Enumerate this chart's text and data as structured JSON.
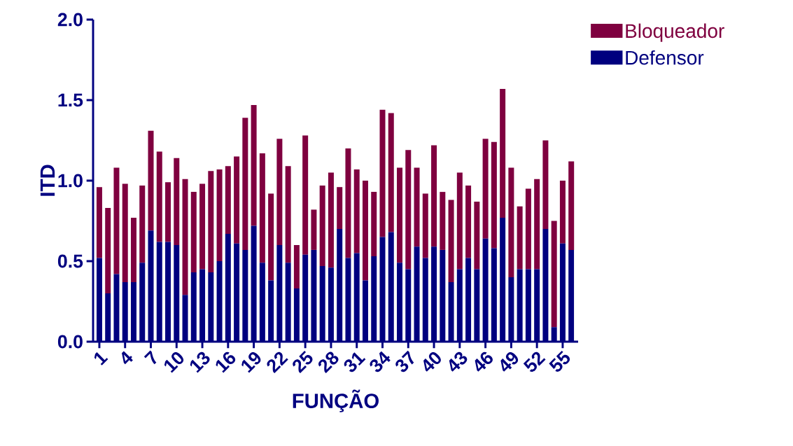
{
  "chart_data": {
    "type": "bar",
    "stacked": true,
    "xlabel": "FUNÇÃO",
    "ylabel": "ITD",
    "categories": [
      "1",
      null,
      null,
      "4",
      null,
      null,
      "7",
      null,
      null,
      "10",
      null,
      null,
      "13",
      null,
      null,
      "16",
      null,
      null,
      "19",
      null,
      null,
      "22",
      null,
      null,
      "25",
      null,
      null,
      "28",
      null,
      null,
      "31",
      null,
      null,
      "34",
      null,
      null,
      "37",
      null,
      null,
      "40",
      null,
      null,
      "43",
      null,
      null,
      "46",
      null,
      null,
      "49",
      null,
      null,
      "52",
      null,
      null,
      "55",
      null
    ],
    "series": [
      {
        "name": "Defensor",
        "color": "#00007f",
        "values": [
          0.52,
          0.3,
          0.42,
          0.37,
          0.37,
          0.49,
          0.69,
          0.62,
          0.62,
          0.6,
          0.29,
          0.43,
          0.45,
          0.43,
          0.5,
          0.67,
          0.61,
          0.57,
          0.72,
          0.49,
          0.38,
          0.6,
          0.49,
          0.33,
          0.54,
          0.57,
          0.47,
          0.46,
          0.7,
          0.52,
          0.55,
          0.38,
          0.53,
          0.65,
          0.68,
          0.49,
          0.45,
          0.59,
          0.52,
          0.59,
          0.57,
          0.37,
          0.45,
          0.52,
          0.45,
          0.64,
          0.58,
          0.77,
          0.4,
          0.45,
          0.45,
          0.45,
          0.7,
          0.09,
          0.61,
          0.57
        ]
      },
      {
        "name": "Bloqueador",
        "color": "#7f003f",
        "values": [
          0.44,
          0.53,
          0.66,
          0.61,
          0.4,
          0.48,
          0.62,
          0.56,
          0.37,
          0.54,
          0.72,
          0.5,
          0.53,
          0.63,
          0.57,
          0.42,
          0.54,
          0.82,
          0.75,
          0.68,
          0.54,
          0.66,
          0.6,
          0.27,
          0.74,
          0.25,
          0.5,
          0.59,
          0.26,
          0.68,
          0.52,
          0.62,
          0.4,
          0.79,
          0.74,
          0.59,
          0.74,
          0.49,
          0.4,
          0.63,
          0.36,
          0.51,
          0.6,
          0.45,
          0.42,
          0.62,
          0.66,
          0.8,
          0.68,
          0.39,
          0.5,
          0.56,
          0.55,
          0.66,
          0.39,
          0.55
        ]
      }
    ],
    "ylim": [
      0,
      2
    ],
    "yticks": [
      {
        "value": 0,
        "label": "0.0"
      },
      0.5,
      {
        "value": 1,
        "label": "1.0"
      },
      1.5,
      {
        "value": 2,
        "label": "2.0"
      }
    ],
    "legend": "top right",
    "grid": false
  }
}
